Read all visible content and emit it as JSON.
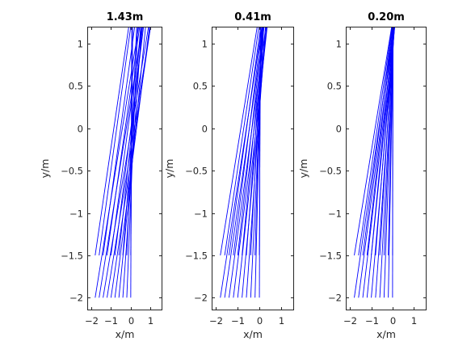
{
  "chart_data": [
    {
      "type": "line",
      "title": "1.43m",
      "xlabel": "x/m",
      "ylabel": "y/m",
      "xlim": [
        -2.2,
        1.6
      ],
      "ylim": [
        -2.15,
        1.2
      ],
      "xticks": [
        -2,
        -1,
        0,
        1
      ],
      "yticks": [
        -2,
        -1.5,
        -1,
        -0.5,
        0,
        0.5,
        1
      ],
      "grid": false,
      "color": "#0000ff",
      "series": [
        {
          "x": [
            0,
            0.05
          ],
          "y": [
            -2,
            1.2
          ]
        },
        {
          "x": [
            -0.2,
            0.35
          ],
          "y": [
            -2,
            1.2
          ]
        },
        {
          "x": [
            -0.4,
            0.55
          ],
          "y": [
            -2,
            1.2
          ]
        },
        {
          "x": [
            -0.6,
            0.75
          ],
          "y": [
            -2,
            1.2
          ]
        },
        {
          "x": [
            -0.8,
            0.95
          ],
          "y": [
            -2,
            1.2
          ]
        },
        {
          "x": [
            -1.0,
            1.0
          ],
          "y": [
            -2,
            1.2
          ]
        },
        {
          "x": [
            -1.2,
            1.0
          ],
          "y": [
            -2,
            1.2
          ]
        },
        {
          "x": [
            -1.4,
            0.9
          ],
          "y": [
            -2,
            1.2
          ]
        },
        {
          "x": [
            -1.6,
            0.6
          ],
          "y": [
            -2,
            1.2
          ]
        },
        {
          "x": [
            -1.8,
            0.4
          ],
          "y": [
            -2,
            1.2
          ]
        },
        {
          "x": [
            0,
            0.1
          ],
          "y": [
            -1.5,
            1.2
          ]
        },
        {
          "x": [
            -0.2,
            0.3
          ],
          "y": [
            -1.5,
            1.2
          ]
        },
        {
          "x": [
            -0.4,
            0.5
          ],
          "y": [
            -1.5,
            1.2
          ]
        },
        {
          "x": [
            -0.6,
            0.6
          ],
          "y": [
            -1.5,
            1.2
          ]
        },
        {
          "x": [
            -0.8,
            0.65
          ],
          "y": [
            -1.5,
            1.2
          ]
        },
        {
          "x": [
            -1.0,
            0.55
          ],
          "y": [
            -1.5,
            1.2
          ]
        },
        {
          "x": [
            -1.2,
            0.45
          ],
          "y": [
            -1.5,
            1.2
          ]
        },
        {
          "x": [
            -1.4,
            0.2
          ],
          "y": [
            -1.5,
            1.2
          ]
        },
        {
          "x": [
            -1.6,
            0.0
          ],
          "y": [
            -1.5,
            1.2
          ]
        },
        {
          "x": [
            -1.8,
            -0.1
          ],
          "y": [
            -1.5,
            1.2
          ]
        }
      ]
    },
    {
      "type": "line",
      "title": "0.41m",
      "xlabel": "x/m",
      "ylabel": "y/m",
      "xlim": [
        -2.2,
        1.6
      ],
      "ylim": [
        -2.15,
        1.2
      ],
      "xticks": [
        -2,
        -1,
        0,
        1
      ],
      "yticks": [
        -2,
        -1.5,
        -1,
        -0.5,
        0,
        0.5,
        1
      ],
      "grid": false,
      "color": "#0000ff",
      "series": [
        {
          "x": [
            0,
            0.04
          ],
          "y": [
            -2,
            1.2
          ]
        },
        {
          "x": [
            -0.2,
            0.12
          ],
          "y": [
            -2,
            1.2
          ]
        },
        {
          "x": [
            -0.4,
            0.2
          ],
          "y": [
            -2,
            1.2
          ]
        },
        {
          "x": [
            -0.6,
            0.28
          ],
          "y": [
            -2,
            1.2
          ]
        },
        {
          "x": [
            -0.8,
            0.33
          ],
          "y": [
            -2,
            1.2
          ]
        },
        {
          "x": [
            -1.0,
            0.36
          ],
          "y": [
            -2,
            1.2
          ]
        },
        {
          "x": [
            -1.2,
            0.34
          ],
          "y": [
            -2,
            1.2
          ]
        },
        {
          "x": [
            -1.4,
            0.3
          ],
          "y": [
            -2,
            1.2
          ]
        },
        {
          "x": [
            -1.6,
            0.22
          ],
          "y": [
            -2,
            1.2
          ]
        },
        {
          "x": [
            -1.8,
            0.12
          ],
          "y": [
            -2,
            1.2
          ]
        },
        {
          "x": [
            0,
            0.05
          ],
          "y": [
            -1.5,
            1.2
          ]
        },
        {
          "x": [
            -0.2,
            0.1
          ],
          "y": [
            -1.5,
            1.2
          ]
        },
        {
          "x": [
            -0.4,
            0.15
          ],
          "y": [
            -1.5,
            1.2
          ]
        },
        {
          "x": [
            -0.6,
            0.19
          ],
          "y": [
            -1.5,
            1.2
          ]
        },
        {
          "x": [
            -0.8,
            0.2
          ],
          "y": [
            -1.5,
            1.2
          ]
        },
        {
          "x": [
            -1.0,
            0.18
          ],
          "y": [
            -1.5,
            1.2
          ]
        },
        {
          "x": [
            -1.2,
            0.13
          ],
          "y": [
            -1.5,
            1.2
          ]
        },
        {
          "x": [
            -1.4,
            0.06
          ],
          "y": [
            -1.5,
            1.2
          ]
        },
        {
          "x": [
            -1.6,
            -0.02
          ],
          "y": [
            -1.5,
            1.2
          ]
        },
        {
          "x": [
            -1.8,
            -0.1
          ],
          "y": [
            -1.5,
            1.2
          ]
        }
      ]
    },
    {
      "type": "line",
      "title": "0.20m",
      "xlabel": "x/m",
      "ylabel": "y/m",
      "xlim": [
        -2.2,
        1.6
      ],
      "ylim": [
        -2.15,
        1.2
      ],
      "xticks": [
        -2,
        -1,
        0,
        1
      ],
      "yticks": [
        -2,
        -1.5,
        -1,
        -0.5,
        0,
        0.5,
        1
      ],
      "grid": false,
      "color": "#0000ff",
      "series": [
        {
          "x": [
            0,
            0.02
          ],
          "y": [
            -2,
            1.2
          ]
        },
        {
          "x": [
            -0.2,
            0.04
          ],
          "y": [
            -2,
            1.2
          ]
        },
        {
          "x": [
            -0.4,
            0.06
          ],
          "y": [
            -2,
            1.2
          ]
        },
        {
          "x": [
            -0.6,
            0.08
          ],
          "y": [
            -2,
            1.2
          ]
        },
        {
          "x": [
            -0.8,
            0.09
          ],
          "y": [
            -2,
            1.2
          ]
        },
        {
          "x": [
            -1.0,
            0.1
          ],
          "y": [
            -2,
            1.2
          ]
        },
        {
          "x": [
            -1.2,
            0.1
          ],
          "y": [
            -2,
            1.2
          ]
        },
        {
          "x": [
            -1.4,
            0.09
          ],
          "y": [
            -2,
            1.2
          ]
        },
        {
          "x": [
            -1.6,
            0.07
          ],
          "y": [
            -2,
            1.2
          ]
        },
        {
          "x": [
            -1.8,
            0.05
          ],
          "y": [
            -2,
            1.2
          ]
        },
        {
          "x": [
            0,
            0.02
          ],
          "y": [
            -1.5,
            1.2
          ]
        },
        {
          "x": [
            -0.2,
            0.03
          ],
          "y": [
            -1.5,
            1.2
          ]
        },
        {
          "x": [
            -0.4,
            0.04
          ],
          "y": [
            -1.5,
            1.2
          ]
        },
        {
          "x": [
            -0.6,
            0.05
          ],
          "y": [
            -1.5,
            1.2
          ]
        },
        {
          "x": [
            -0.8,
            0.05
          ],
          "y": [
            -1.5,
            1.2
          ]
        },
        {
          "x": [
            -1.0,
            0.04
          ],
          "y": [
            -1.5,
            1.2
          ]
        },
        {
          "x": [
            -1.2,
            0.02
          ],
          "y": [
            -1.5,
            1.2
          ]
        },
        {
          "x": [
            -1.4,
            0.0
          ],
          "y": [
            -1.5,
            1.2
          ]
        },
        {
          "x": [
            -1.6,
            -0.02
          ],
          "y": [
            -1.5,
            1.2
          ]
        },
        {
          "x": [
            -1.8,
            -0.04
          ],
          "y": [
            -1.5,
            1.2
          ]
        }
      ]
    }
  ]
}
